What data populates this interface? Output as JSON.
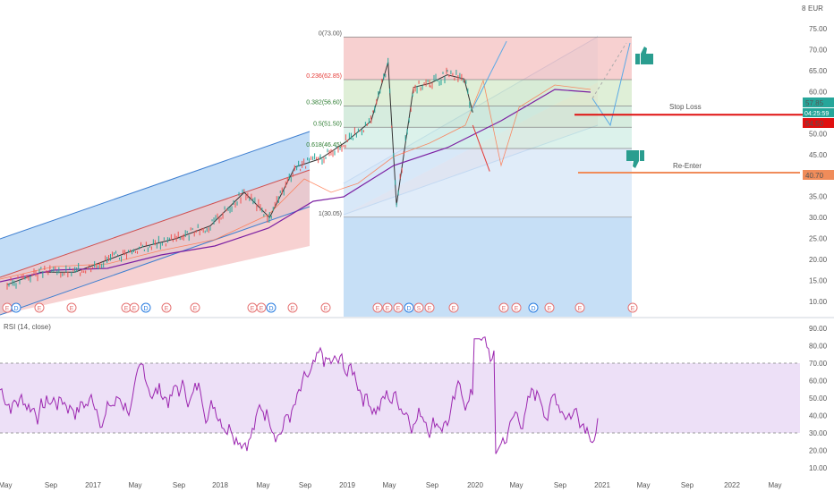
{
  "currency": "EUR",
  "price_axis_ticks": [
    "75.00",
    "70.00",
    "65.00",
    "60.00",
    "55.00",
    "50.00",
    "45.00",
    "40.00",
    "35.00",
    "30.00",
    "25.00",
    "20.00",
    "15.00",
    "10.00"
  ],
  "price_badges": {
    "upper": "57.85",
    "countdown": "04:25:59",
    "lower": "54.50",
    "reenter": "40.70"
  },
  "annotations": {
    "stop_loss": "Stop Loss",
    "re_enter": "Re-Enter"
  },
  "fib_levels": [
    {
      "label": "0(73.00)",
      "price": 73.0,
      "fill": "#f6c8c8"
    },
    {
      "label": "0.236(62.85)",
      "price": 62.85,
      "fill": "#d9ecd0"
    },
    {
      "label": "0.382(56.60)",
      "price": 56.6,
      "fill": "#cfe9d8"
    },
    {
      "label": "0.5(51.50)",
      "price": 51.5,
      "fill": "#d6f0e8"
    },
    {
      "label": "0.618(46.45)",
      "price": 46.45,
      "fill": "#dbe9f8"
    },
    {
      "label": "1(30.05)",
      "price": 30.05,
      "fill": "#e4e4e4"
    }
  ],
  "event_markers": [
    "E",
    "D",
    "E",
    "E",
    "E",
    "E",
    "D",
    "E",
    "E",
    "E",
    "E",
    "D",
    "E",
    "E",
    "E",
    "E",
    "E",
    "D",
    "S",
    "E",
    "E",
    "E",
    "E",
    "D",
    "E",
    "E",
    "E"
  ],
  "x_axis_ticks": [
    "May",
    "Sep",
    "2017",
    "May",
    "Sep",
    "2018",
    "May",
    "Sep",
    "2019",
    "May",
    "Sep",
    "2020",
    "May",
    "Sep",
    "2021",
    "May",
    "Sep",
    "2022",
    "May"
  ],
  "rsi": {
    "label": "RSI (14, close)",
    "ticks": [
      "90.00",
      "80.00",
      "70.00",
      "60.00",
      "50.00",
      "40.00",
      "30.00",
      "20.00",
      "10.00"
    ],
    "upper_band": 70,
    "lower_band": 30
  },
  "colors": {
    "candle_up": "#26a69a",
    "candle_down": "#ef5350",
    "rsi_line": "#9c27b0",
    "rsi_band": "#e9d8f5",
    "stop_loss": "#e01010",
    "re_enter": "#f08c5a",
    "thumb": "#2a9d8f"
  },
  "chart_data": {
    "type": "line",
    "title": "",
    "price_range": [
      7.5,
      77.5
    ],
    "rsi_range": [
      5,
      95
    ],
    "price_series": {
      "name": "",
      "x": [
        "2016-05",
        "2016-09",
        "2017-01",
        "2017-05",
        "2017-09",
        "2018-01",
        "2018-05",
        "2018-09",
        "2018-12",
        "2019-03",
        "2019-06",
        "2019-09",
        "2019-12",
        "2020-02",
        "2020-03",
        "2020-05",
        "2020-07",
        "2020-09",
        "2020-11",
        "2020-12"
      ],
      "values": [
        14,
        17,
        17,
        20,
        23,
        25,
        28,
        36,
        30,
        42,
        44,
        48,
        53,
        67,
        33,
        61,
        62,
        64,
        63,
        55
      ]
    },
    "projection_up": {
      "x": [
        "2020-12",
        "2021-04"
      ],
      "values": [
        56,
        72
      ]
    },
    "projection_down": {
      "x": [
        "2020-12",
        "2021-02"
      ],
      "values": [
        52,
        41
      ]
    },
    "stop_loss_level": 54.5,
    "re_enter_level": 40.7
  }
}
